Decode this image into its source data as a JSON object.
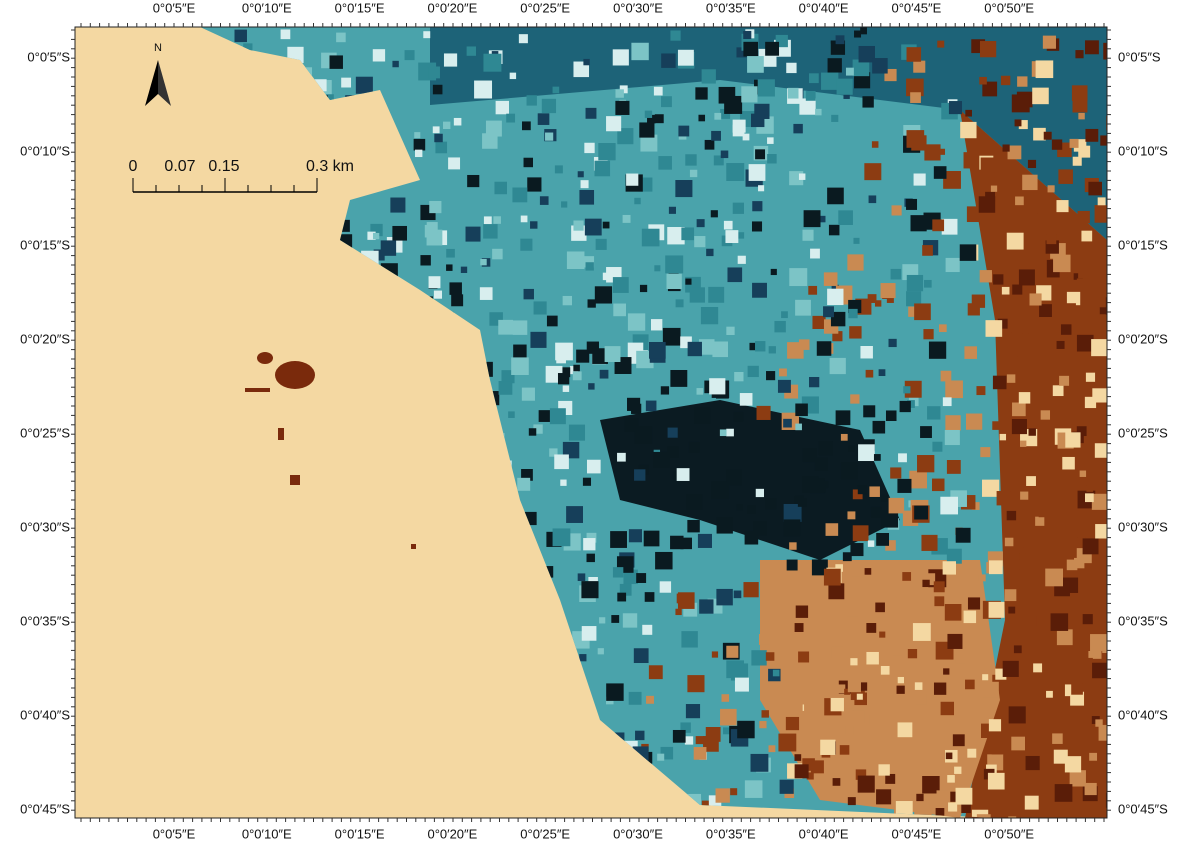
{
  "map": {
    "x_labels": [
      "0°0′5″E",
      "0°0′10″E",
      "0°0′15″E",
      "0°0′20″E",
      "0°0′25″E",
      "0°0′30″E",
      "0°0′35″E",
      "0°0′40″E",
      "0°0′45″E",
      "0°0′50″E"
    ],
    "y_labels": [
      "0°0′5″S",
      "0°0′10″S",
      "0°0′15″S",
      "0°0′20″S",
      "0°0′25″S",
      "0°0′30″S",
      "0°0′35″S",
      "0°0′40″S",
      "0°0′45″S"
    ],
    "north_label": "N",
    "scale_labels": [
      "0",
      "0.07",
      "0.15",
      "0.3 km"
    ]
  }
}
